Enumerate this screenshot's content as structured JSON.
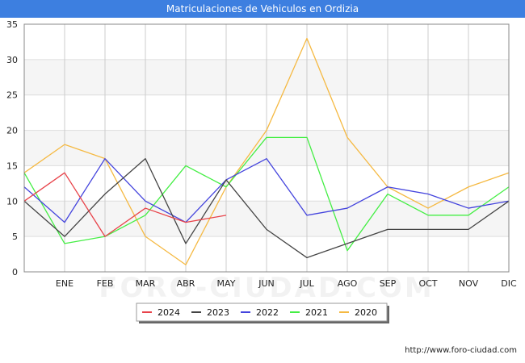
{
  "header": {
    "title": "Matriculaciones de Vehiculos en Ordizia"
  },
  "footer": {
    "url": "http://www.foro-ciudad.com"
  },
  "watermark": {
    "text": "FORO-CIUDAD.COM"
  },
  "chart_data": {
    "type": "line",
    "title": "Matriculaciones de Vehiculos en Ordizia",
    "xlabel": "",
    "ylabel": "",
    "x_ticks": [
      "ENE",
      "FEB",
      "MAR",
      "ABR",
      "MAY",
      "JUN",
      "JUL",
      "AGO",
      "SEP",
      "OCT",
      "NOV",
      "DIC"
    ],
    "y_ticks": [
      0,
      5,
      10,
      15,
      20,
      25,
      30,
      35
    ],
    "ylim": [
      0,
      35
    ],
    "grid": true,
    "legend_position": "bottom-center",
    "series": [
      {
        "name": "2024",
        "color": "#e8434a",
        "values": [
          10,
          14,
          5,
          9,
          7,
          8
        ]
      },
      {
        "name": "2023",
        "color": "#444444",
        "values": [
          10,
          5,
          11,
          16,
          4,
          13,
          6,
          2,
          4,
          6,
          6,
          6,
          10
        ]
      },
      {
        "name": "2022",
        "color": "#4444dd",
        "values": [
          12,
          7,
          16,
          10,
          7,
          13,
          16,
          8,
          9,
          12,
          11,
          9,
          10
        ]
      },
      {
        "name": "2021",
        "color": "#44ee44",
        "values": [
          14,
          4,
          5,
          8,
          15,
          12,
          19,
          19,
          3,
          11,
          8,
          8,
          12
        ]
      },
      {
        "name": "2020",
        "color": "#f5b942",
        "values": [
          14,
          18,
          16,
          5,
          1,
          12,
          20,
          33,
          19,
          12,
          9,
          12,
          14
        ]
      }
    ]
  }
}
